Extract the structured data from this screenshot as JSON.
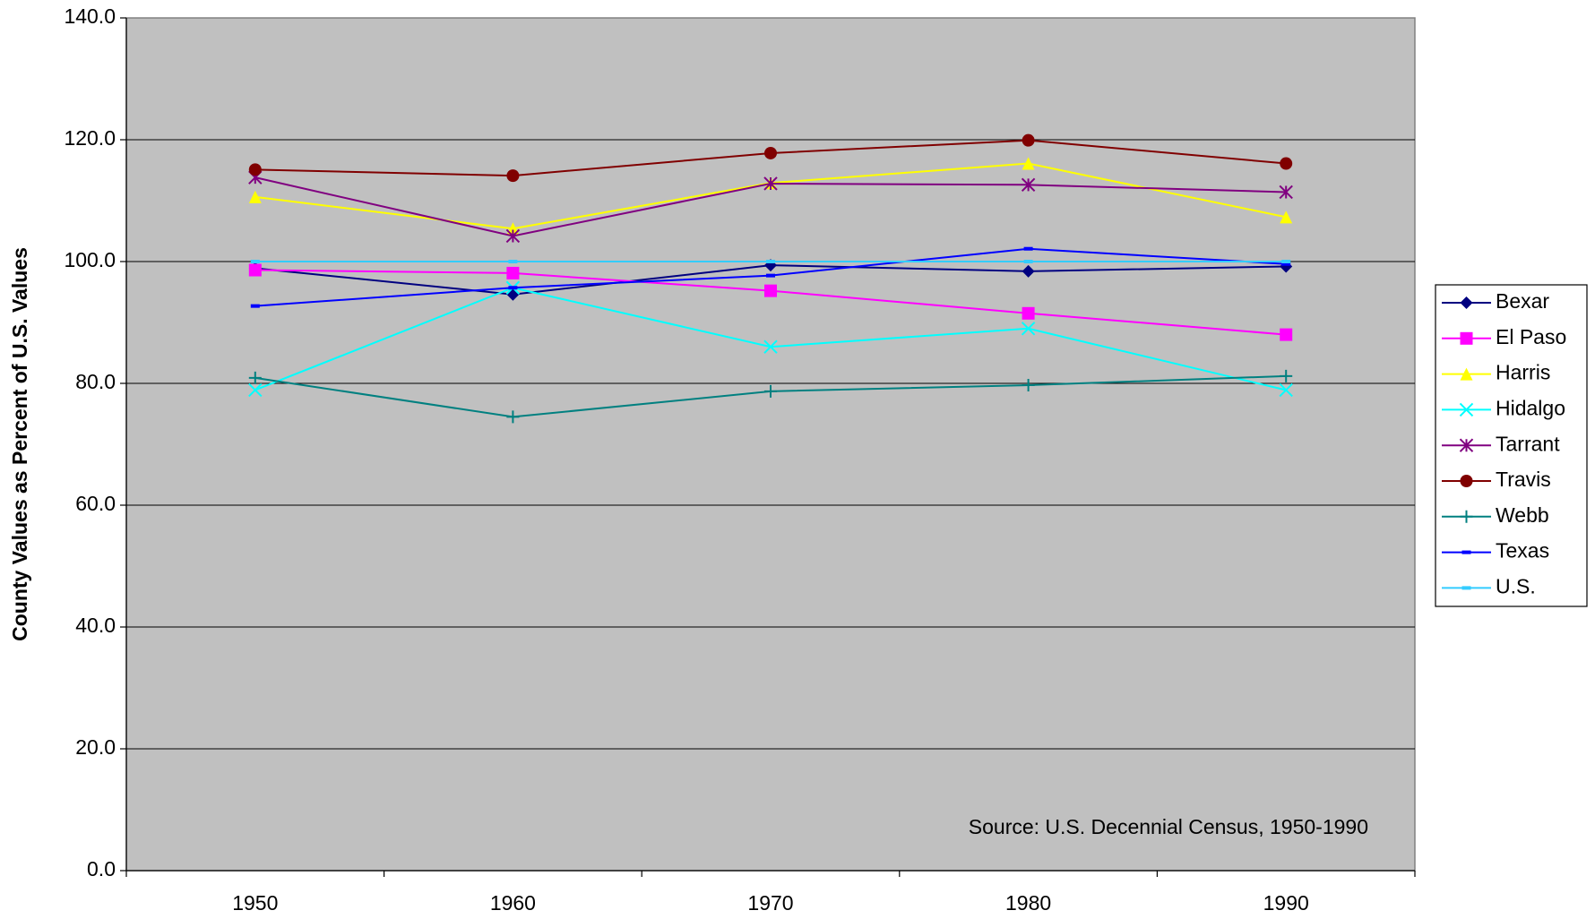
{
  "chart_data": {
    "type": "line",
    "y_label": "County Values as Percent of U.S. Values",
    "annotation": "Source: U.S. Decennial Census, 1950-1990",
    "categories": [
      "1950",
      "1960",
      "1970",
      "1980",
      "1990"
    ],
    "ylim": [
      0,
      140
    ],
    "yticks": [
      {
        "value": 0,
        "label": "0.0"
      },
      {
        "value": 20,
        "label": "20.0"
      },
      {
        "value": 40,
        "label": "40.0"
      },
      {
        "value": 60,
        "label": "60.0"
      },
      {
        "value": 80,
        "label": "80.0"
      },
      {
        "value": 100,
        "label": "100.0"
      },
      {
        "value": 120,
        "label": "120.0"
      },
      {
        "value": 140,
        "label": "140.0"
      }
    ],
    "grid": true,
    "legend": "right",
    "series": [
      {
        "name": "Bexar",
        "color": "#000080",
        "marker": "diamond",
        "values": [
          98.9,
          94.6,
          99.4,
          98.4,
          99.2
        ]
      },
      {
        "name": "El Paso",
        "color": "#ff00ff",
        "marker": "square",
        "values": [
          98.6,
          98.1,
          95.2,
          91.5,
          88.0
        ]
      },
      {
        "name": "Harris",
        "color": "#ffff00",
        "marker": "triangle",
        "values": [
          110.6,
          105.4,
          112.9,
          116.1,
          107.3
        ]
      },
      {
        "name": "Hidalgo",
        "color": "#00ffff",
        "marker": "x",
        "values": [
          78.9,
          95.7,
          86.0,
          89.0,
          78.9
        ]
      },
      {
        "name": "Tarrant",
        "color": "#800080",
        "marker": "star",
        "values": [
          113.8,
          104.2,
          112.8,
          112.6,
          111.4
        ]
      },
      {
        "name": "Travis",
        "color": "#800000",
        "marker": "circle",
        "values": [
          115.1,
          114.1,
          117.8,
          119.9,
          116.1
        ]
      },
      {
        "name": "Webb",
        "color": "#008080",
        "marker": "plus",
        "values": [
          80.9,
          74.5,
          78.7,
          79.7,
          81.2
        ]
      },
      {
        "name": "Texas",
        "color": "#0000ff",
        "marker": "dash",
        "values": [
          92.7,
          95.7,
          97.7,
          102.1,
          99.6
        ]
      },
      {
        "name": "U.S.",
        "color": "#33ccff",
        "marker": "dash",
        "values": [
          100,
          100,
          100,
          100,
          100
        ]
      }
    ]
  }
}
